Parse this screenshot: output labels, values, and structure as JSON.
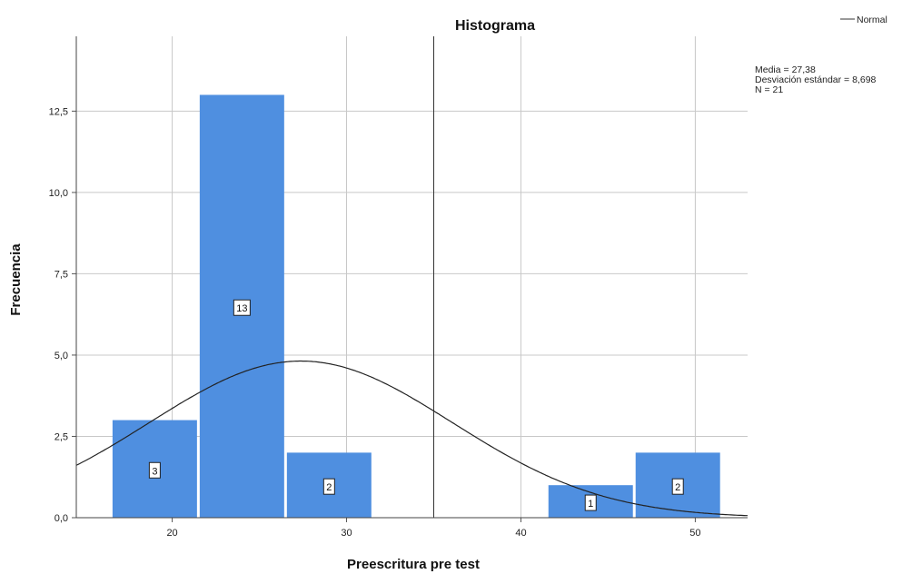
{
  "chart_data": {
    "type": "bar",
    "title": "Histograma",
    "xlabel": "Preescritura pre test",
    "ylabel": "Frecuencia",
    "xlim": [
      14.5,
      53
    ],
    "ylim": [
      0,
      14.8
    ],
    "x_ticks": [
      20,
      30,
      40,
      50
    ],
    "x_tick_labels": [
      "20",
      "30",
      "40",
      "50"
    ],
    "y_ticks": [
      0,
      2.5,
      5,
      7.5,
      10,
      12.5
    ],
    "y_tick_labels": [
      "0,0",
      "2,5",
      "5,0",
      "7,5",
      "10,0",
      "12,5"
    ],
    "grid": true,
    "bins": [
      {
        "start": 16.5,
        "end": 21.5,
        "count": 3,
        "label": "3"
      },
      {
        "start": 21.5,
        "end": 26.5,
        "count": 13,
        "label": "13"
      },
      {
        "start": 26.5,
        "end": 31.5,
        "count": 2,
        "label": "2"
      },
      {
        "start": 41.5,
        "end": 46.5,
        "count": 1,
        "label": "1"
      },
      {
        "start": 46.5,
        "end": 51.5,
        "count": 2,
        "label": "2"
      }
    ],
    "bar_color": "#4f8fe0",
    "normal_curve": {
      "name": "Normal",
      "mean": 27.38,
      "sd": 8.698,
      "n": 21,
      "bin_width": 5
    },
    "stats_text": [
      "Media = 27,38",
      "Desviación estándar = 8,698",
      "N = 21"
    ],
    "legend": {
      "position": "top-right",
      "entries": [
        "Normal"
      ]
    }
  }
}
